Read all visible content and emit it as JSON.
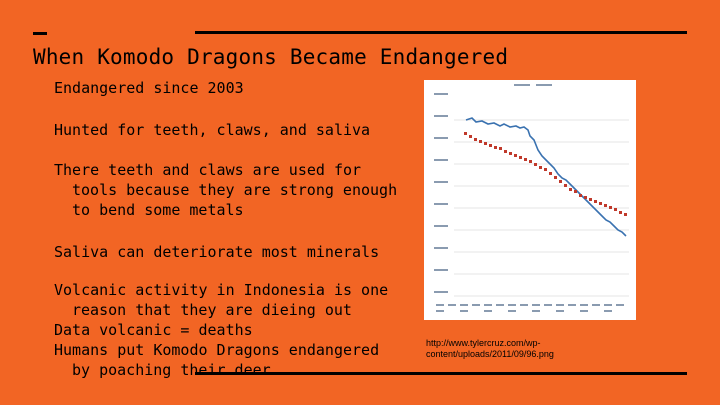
{
  "slide": {
    "title": "When Komodo Dragons Became Endangered",
    "bullets": [
      "Endangered since 2003",
      "Hunted for teeth, claws, and saliva",
      "There teeth and claws are used for tools because they are strong enough to bend some metals",
      "Saliva can deteriorate most minerals",
      "Volcanic activity in Indonesia is one reason that they are dieing out",
      "Data volcanic = deaths",
      "Humans put Komodo Dragons endangered by poaching their deer"
    ],
    "image_caption": "http://www.tylercruz.com/wp-content/uploads/2011/09/96.png",
    "colors": {
      "background": "#f26524",
      "series_blue": "#3a72b0",
      "series_red": "#c0392b"
    }
  }
}
